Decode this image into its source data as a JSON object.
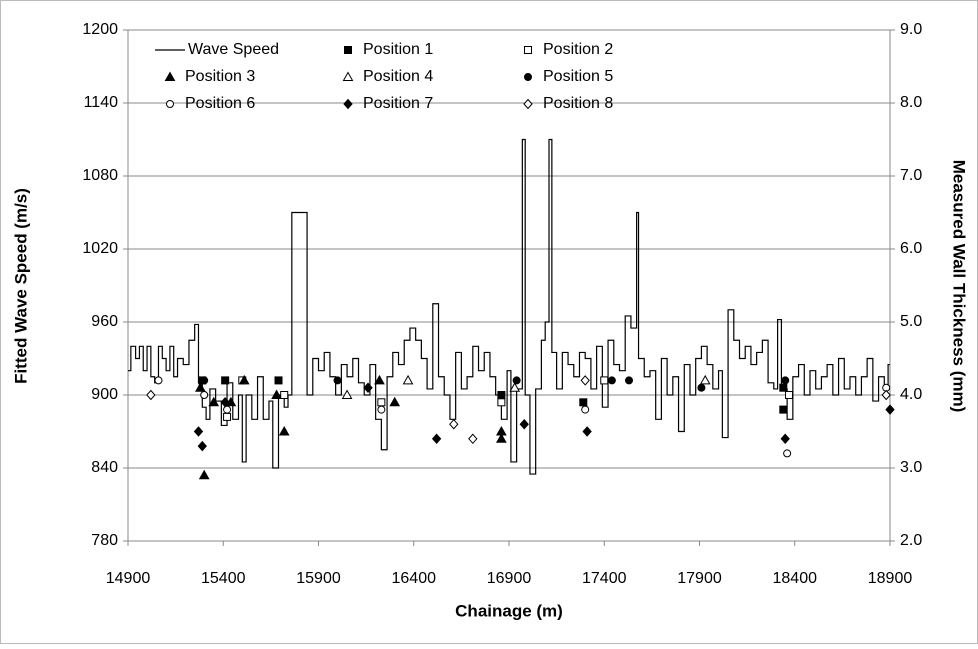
{
  "chart_data": {
    "type": "line",
    "step": "post",
    "xlabel": "Chainage (m)",
    "ylabel": "Fitted Wave Speed (m/s)",
    "y2label": "Measured Wall Thickness (mm)",
    "xlim": [
      14900,
      18900
    ],
    "xticks": [
      14900,
      15400,
      15900,
      16400,
      16900,
      17400,
      17900,
      18400,
      18900
    ],
    "ylim": [
      780,
      1200
    ],
    "yticks": [
      780,
      840,
      900,
      960,
      1020,
      1080,
      1140,
      1200
    ],
    "y2lim": [
      2,
      9
    ],
    "y2ticks": [
      {
        "value": 2,
        "label": "2.0"
      },
      {
        "value": 3,
        "label": "3.0"
      },
      {
        "value": 4,
        "label": "4.0"
      },
      {
        "value": 5,
        "label": "5.0"
      },
      {
        "value": 6,
        "label": "6.0"
      },
      {
        "value": 7,
        "label": "7.0"
      },
      {
        "value": 8,
        "label": "8.0"
      },
      {
        "value": 9,
        "label": "9.0"
      }
    ],
    "grid": true,
    "legend": "upper left",
    "legend_columns": 3,
    "series": [
      {
        "name": "Wave Speed",
        "type": "line",
        "color": "#000000",
        "x": [
          14900,
          14915,
          14940,
          14960,
          14980,
          15000,
          15020,
          15040,
          15060,
          15080,
          15100,
          15120,
          15140,
          15160,
          15190,
          15220,
          15250,
          15270,
          15290,
          15310,
          15330,
          15360,
          15390,
          15420,
          15450,
          15480,
          15500,
          15520,
          15550,
          15580,
          15610,
          15640,
          15660,
          15690,
          15720,
          15740,
          15760,
          15840,
          15870,
          15900,
          15930,
          15960,
          15990,
          16020,
          16050,
          16080,
          16110,
          16140,
          16170,
          16200,
          16230,
          16260,
          16290,
          16320,
          16350,
          16380,
          16410,
          16440,
          16470,
          16500,
          16530,
          16560,
          16590,
          16620,
          16650,
          16680,
          16710,
          16740,
          16770,
          16800,
          16830,
          16860,
          16890,
          16910,
          16940,
          16970,
          16985,
          17010,
          17040,
          17070,
          17090,
          17110,
          17125,
          17150,
          17180,
          17210,
          17240,
          17270,
          17300,
          17330,
          17360,
          17390,
          17420,
          17450,
          17480,
          17510,
          17540,
          17570,
          17580,
          17610,
          17640,
          17670,
          17700,
          17730,
          17760,
          17790,
          17820,
          17850,
          17880,
          17910,
          17940,
          17970,
          18000,
          18020,
          18050,
          18080,
          18110,
          18140,
          18170,
          18200,
          18230,
          18260,
          18290,
          18310,
          18330,
          18360,
          18390,
          18420,
          18450,
          18480,
          18510,
          18540,
          18570,
          18600,
          18630,
          18660,
          18690,
          18720,
          18750,
          18780,
          18810,
          18840,
          18870,
          18890
        ],
        "values": [
          920,
          940,
          930,
          940,
          920,
          940,
          915,
          910,
          940,
          930,
          920,
          940,
          915,
          930,
          925,
          945,
          958,
          910,
          890,
          880,
          905,
          895,
          875,
          910,
          880,
          900,
          845,
          900,
          880,
          915,
          880,
          895,
          840,
          900,
          890,
          900,
          1050,
          900,
          930,
          920,
          935,
          915,
          900,
          925,
          915,
          930,
          910,
          900,
          925,
          880,
          855,
          915,
          935,
          925,
          945,
          955,
          945,
          930,
          905,
          975,
          915,
          900,
          880,
          935,
          905,
          915,
          940,
          920,
          935,
          915,
          900,
          880,
          920,
          845,
          905,
          1110,
          900,
          835,
          905,
          945,
          960,
          1110,
          935,
          905,
          935,
          925,
          915,
          935,
          930,
          905,
          940,
          890,
          945,
          925,
          920,
          965,
          955,
          1050,
          930,
          915,
          920,
          880,
          930,
          900,
          915,
          870,
          925,
          900,
          930,
          940,
          925,
          905,
          920,
          865,
          970,
          945,
          930,
          940,
          925,
          935,
          945,
          910,
          905,
          962,
          905,
          880,
          915,
          925,
          900,
          920,
          905,
          915,
          925,
          900,
          930,
          905,
          915,
          900,
          915,
          930,
          895,
          915,
          905,
          925
        ]
      },
      {
        "name": "Position 1",
        "type": "scatter",
        "axis": "y2",
        "marker": "square",
        "filled": true,
        "color": "#000000",
        "x": [
          15290,
          15410,
          15690,
          16860,
          17290,
          18340,
          18340
        ],
        "values": [
          4.2,
          4.2,
          4.2,
          4.0,
          3.9,
          3.8,
          4.1
        ]
      },
      {
        "name": "Position 2",
        "type": "scatter",
        "axis": "y2",
        "marker": "square",
        "filled": false,
        "color": "#000000",
        "x": [
          15420,
          15500,
          15720,
          16230,
          16860,
          17400,
          18370
        ],
        "values": [
          3.7,
          4.2,
          4.0,
          3.9,
          3.9,
          4.2,
          4.0
        ]
      },
      {
        "name": "Position 3",
        "type": "scatter",
        "axis": "y2",
        "marker": "triangle",
        "filled": true,
        "color": "#000000",
        "x": [
          15300,
          15280,
          15350,
          15440,
          15510,
          15680,
          15720,
          16220,
          16300,
          16860,
          16860
        ],
        "values": [
          2.9,
          4.1,
          3.9,
          3.9,
          4.2,
          4.0,
          3.5,
          4.2,
          3.9,
          3.4,
          3.5
        ]
      },
      {
        "name": "Position 4",
        "type": "scatter",
        "axis": "y2",
        "marker": "triangle",
        "filled": false,
        "color": "#000000",
        "x": [
          16050,
          16370,
          16930,
          17930
        ],
        "values": [
          4.0,
          4.2,
          4.1,
          4.2
        ]
      },
      {
        "name": "Position 5",
        "type": "scatter",
        "axis": "y2",
        "marker": "circle",
        "filled": true,
        "color": "#000000",
        "x": [
          15300,
          16000,
          16940,
          17440,
          17530,
          17910,
          18350
        ],
        "values": [
          4.2,
          4.2,
          4.2,
          4.2,
          4.2,
          4.1,
          4.2
        ]
      },
      {
        "name": "Position 6",
        "type": "scatter",
        "axis": "y2",
        "marker": "circle",
        "filled": false,
        "color": "#000000",
        "x": [
          15060,
          15300,
          15420,
          16230,
          17300,
          18360,
          18880
        ],
        "values": [
          4.2,
          4.0,
          3.8,
          3.8,
          3.8,
          3.2,
          4.1
        ]
      },
      {
        "name": "Position 7",
        "type": "scatter",
        "axis": "y2",
        "marker": "diamond",
        "filled": true,
        "color": "#000000",
        "x": [
          15290,
          15270,
          15410,
          16160,
          16520,
          16980,
          17310,
          18350,
          18900
        ],
        "values": [
          3.3,
          3.5,
          3.9,
          4.1,
          3.4,
          3.6,
          3.5,
          3.4,
          3.8
        ]
      },
      {
        "name": "Position 8",
        "type": "scatter",
        "axis": "y2",
        "marker": "diamond",
        "filled": false,
        "color": "#000000",
        "x": [
          15020,
          16610,
          16710,
          17300,
          18880
        ],
        "values": [
          4.0,
          3.6,
          3.4,
          4.2,
          4.0
        ]
      }
    ]
  }
}
